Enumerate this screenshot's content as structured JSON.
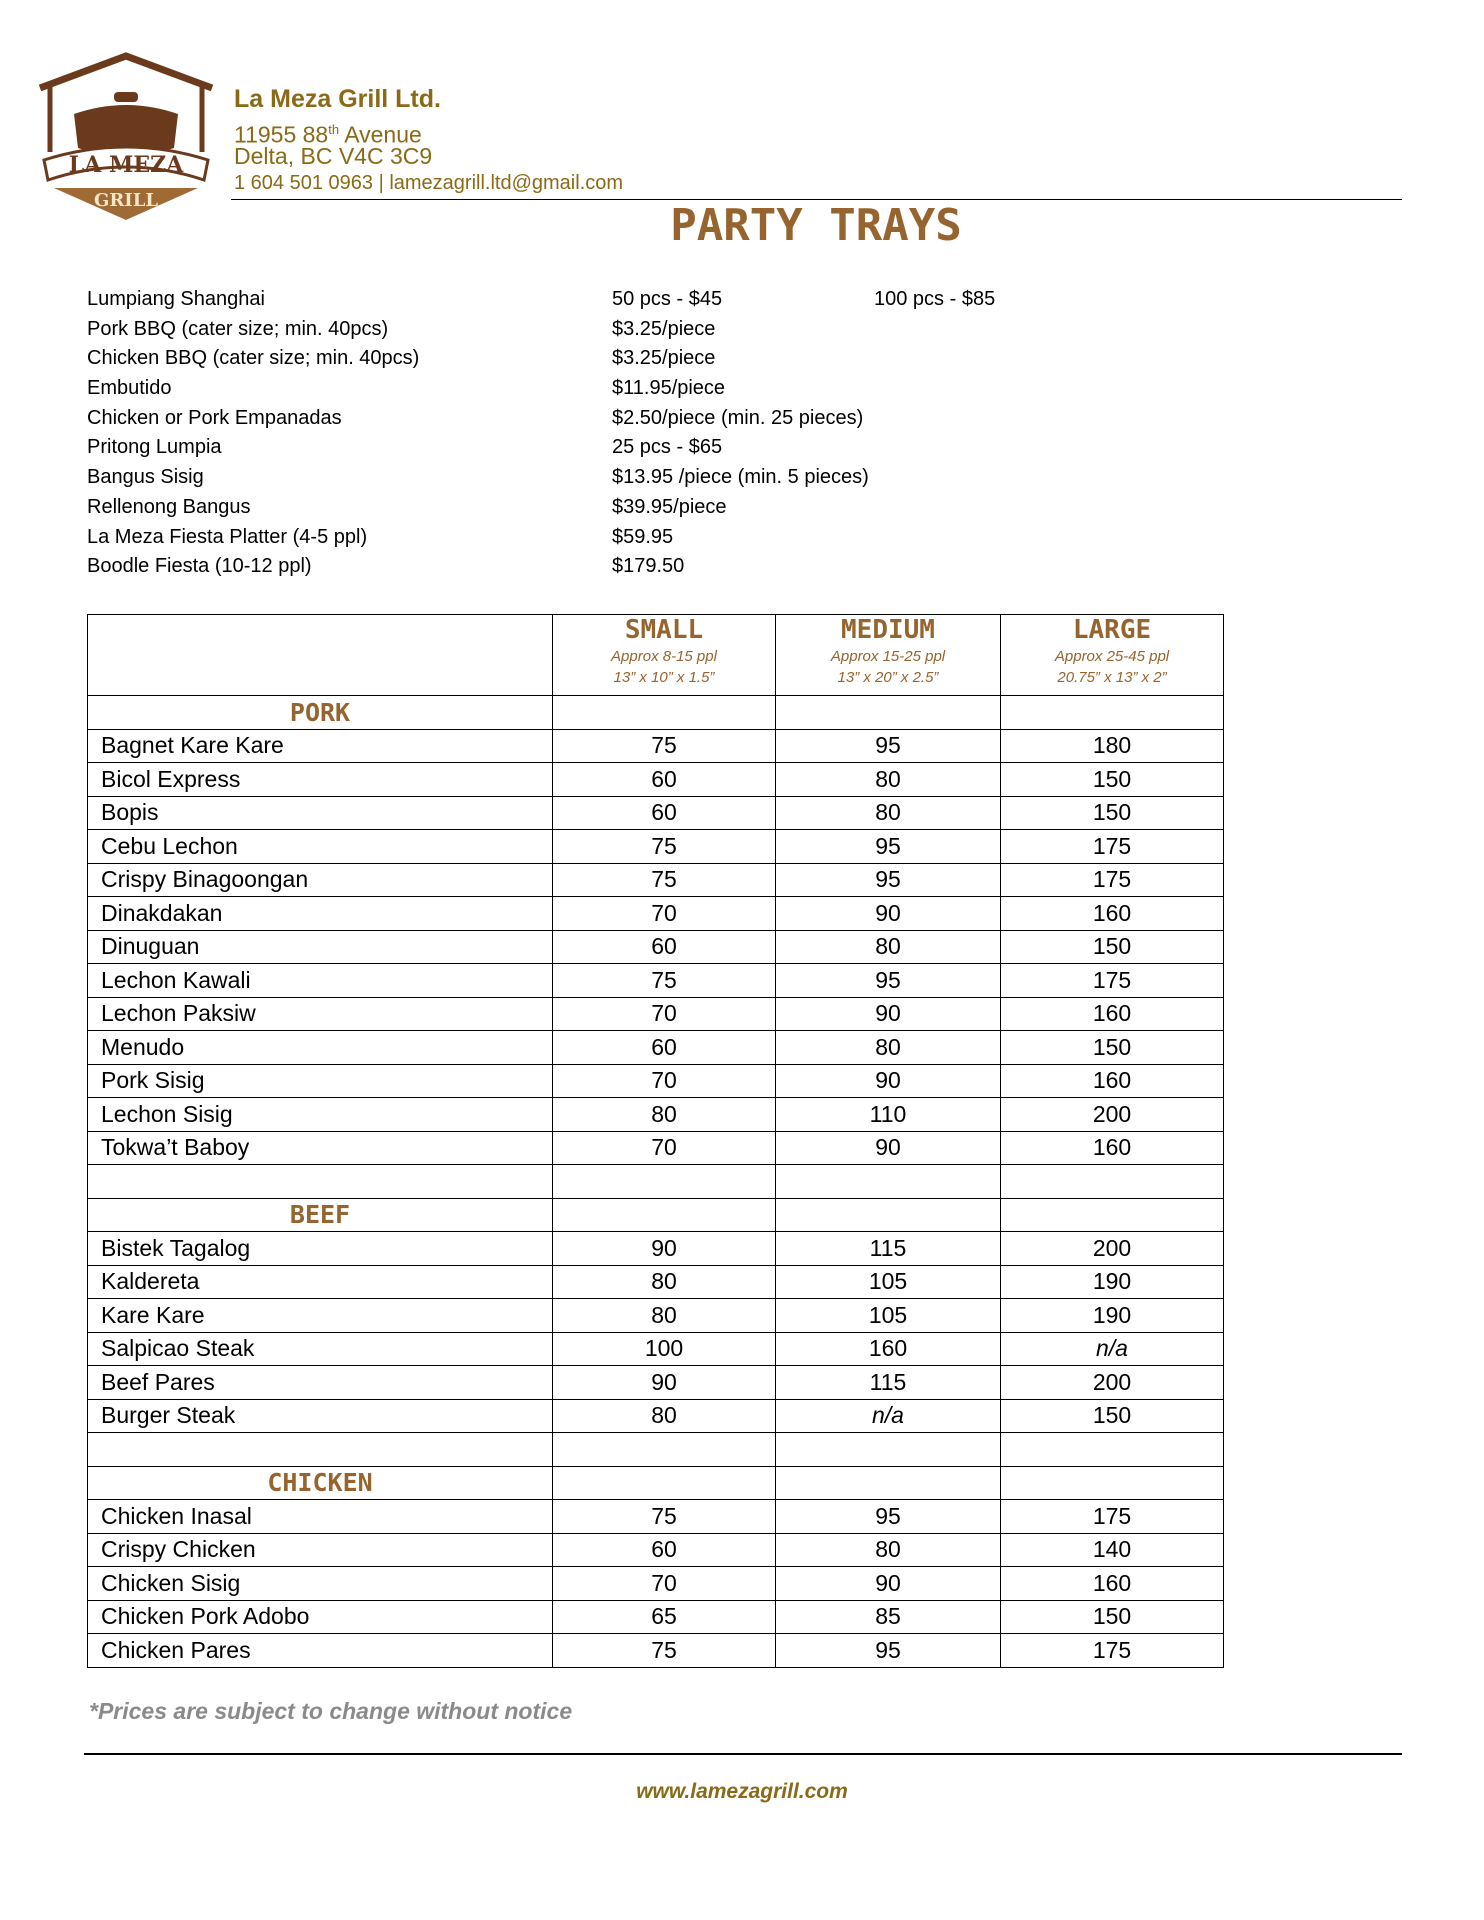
{
  "logo": {
    "top": "LA MEZA",
    "bottom": "GRILL"
  },
  "header": {
    "company": "La Meza Grill Ltd.",
    "address_parts": [
      "11955 88",
      "th",
      "Avenue"
    ],
    "city": "Delta, BC V4C 3C9",
    "contact": "1 604 501 0963 | lamezagrill.ltd@gmail.com"
  },
  "title": "PARTY TRAYS",
  "items": [
    {
      "name": "Lumpiang Shanghai",
      "prices": [
        "50 pcs - $45",
        "100 pcs - $85"
      ]
    },
    {
      "name": "Pork BBQ (cater size; min. 40pcs)",
      "prices": [
        "$3.25/piece"
      ]
    },
    {
      "name": "Chicken BBQ (cater size; min. 40pcs)",
      "prices": [
        "$3.25/piece"
      ]
    },
    {
      "name": "Embutido",
      "prices": [
        "$11.95/piece"
      ]
    },
    {
      "name": "Chicken or Pork Empanadas",
      "prices": [
        "$2.50/piece (min. 25 pieces)"
      ]
    },
    {
      "name": "Pritong Lumpia",
      "prices": [
        "25 pcs - $65"
      ]
    },
    {
      "name": "Bangus Sisig",
      "prices": [
        "$13.95 /piece (min. 5 pieces)"
      ]
    },
    {
      "name": "Rellenong Bangus",
      "prices": [
        "$39.95/piece"
      ]
    },
    {
      "name": "La Meza Fiesta Platter (4-5 ppl)",
      "prices": [
        "$59.95"
      ]
    },
    {
      "name": "Boodle Fiesta (10-12 ppl)",
      "prices": [
        "$179.50"
      ]
    }
  ],
  "table": {
    "columns": [
      {
        "title": "SMALL",
        "people": "Approx 8-15 ppl",
        "size": "13” x  10” x 1.5”"
      },
      {
        "title": "MEDIUM",
        "people": "Approx 15-25 ppl",
        "size": "13” x 20” x 2.5”"
      },
      {
        "title": "LARGE",
        "people": "Approx 25-45 ppl",
        "size": "20.75” x 13” x 2”"
      }
    ],
    "sections": [
      {
        "name": "PORK",
        "rows": [
          {
            "item": "Bagnet Kare Kare",
            "prices": [
              75,
              95,
              180
            ]
          },
          {
            "item": "Bicol Express",
            "prices": [
              60,
              80,
              150
            ]
          },
          {
            "item": "Bopis",
            "prices": [
              60,
              80,
              150
            ]
          },
          {
            "item": "Cebu Lechon",
            "prices": [
              75,
              95,
              175
            ]
          },
          {
            "item": "Crispy Binagoongan",
            "prices": [
              75,
              95,
              175
            ]
          },
          {
            "item": "Dinakdakan",
            "prices": [
              70,
              90,
              160
            ]
          },
          {
            "item": "Dinuguan",
            "prices": [
              60,
              80,
              150
            ]
          },
          {
            "item": "Lechon Kawali",
            "prices": [
              75,
              95,
              175
            ]
          },
          {
            "item": "Lechon Paksiw",
            "prices": [
              70,
              90,
              160
            ]
          },
          {
            "item": "Menudo",
            "prices": [
              60,
              80,
              150
            ]
          },
          {
            "item": "Pork Sisig",
            "prices": [
              70,
              90,
              160
            ]
          },
          {
            "item": "Lechon Sisig",
            "prices": [
              80,
              110,
              200
            ]
          },
          {
            "item": "Tokwa’t Baboy",
            "prices": [
              70,
              90,
              160
            ]
          }
        ]
      },
      {
        "name": "BEEF",
        "rows": [
          {
            "item": "Bistek Tagalog",
            "prices": [
              90,
              115,
              200
            ]
          },
          {
            "item": "Kaldereta",
            "prices": [
              80,
              105,
              190
            ]
          },
          {
            "item": "Kare Kare",
            "prices": [
              80,
              105,
              190
            ]
          },
          {
            "item": "Salpicao Steak",
            "prices": [
              100,
              160,
              "n/a"
            ]
          },
          {
            "item": "Beef Pares",
            "prices": [
              90,
              115,
              200
            ]
          },
          {
            "item": "Burger Steak",
            "prices": [
              80,
              "n/a",
              150
            ]
          }
        ]
      },
      {
        "name": "CHICKEN",
        "rows": [
          {
            "item": "Chicken Inasal",
            "prices": [
              75,
              95,
              175
            ]
          },
          {
            "item": "Crispy Chicken",
            "prices": [
              60,
              80,
              140
            ]
          },
          {
            "item": "Chicken Sisig",
            "prices": [
              70,
              90,
              160
            ]
          },
          {
            "item": "Chicken Pork Adobo",
            "prices": [
              65,
              85,
              150
            ]
          },
          {
            "item": "Chicken Pares",
            "prices": [
              75,
              95,
              175
            ]
          }
        ]
      }
    ]
  },
  "footer": {
    "note": "*Prices are subject to change without notice",
    "website": "www.lamezagrill.com"
  }
}
